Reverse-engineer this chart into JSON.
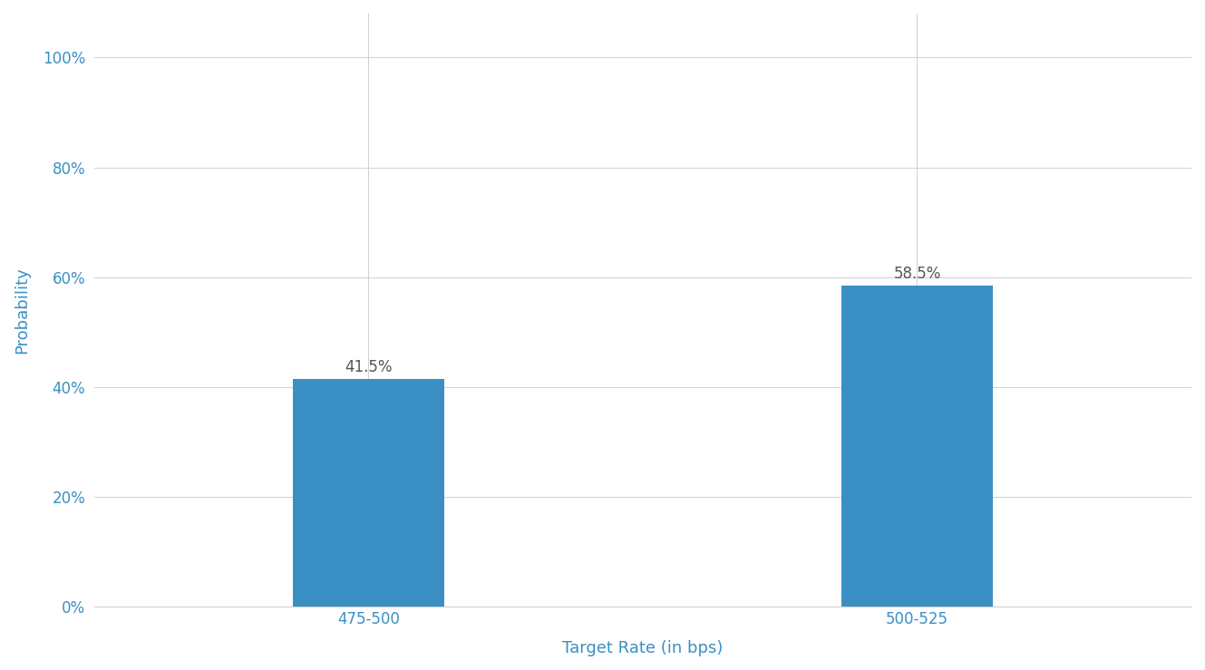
{
  "categories": [
    "475-500",
    "500-525"
  ],
  "values": [
    41.5,
    58.5
  ],
  "bar_color": "#3a8fc4",
  "xlabel": "Target Rate (in bps)",
  "ylabel": "Probability",
  "yticks": [
    0,
    20,
    40,
    60,
    80,
    100
  ],
  "ytick_labels": [
    "0%",
    "20%",
    "40%",
    "60%",
    "80%",
    "100%"
  ],
  "ylim": [
    0,
    108
  ],
  "xlim": [
    0,
    4
  ],
  "x_positions": [
    1,
    3
  ],
  "bar_width": 0.55,
  "title_color": "#1a3a6b",
  "subtitle_color": "#3a8fc4",
  "axis_label_color": "#3a8fc4",
  "tick_label_color": "#3a8fc4",
  "bar_label_color": "#555555",
  "background_color": "#ffffff",
  "grid_color": "#d0d0d0",
  "title_fontsize": 15,
  "subtitle_fontsize": 13,
  "axis_label_fontsize": 13,
  "tick_fontsize": 12,
  "bar_label_fontsize": 12
}
